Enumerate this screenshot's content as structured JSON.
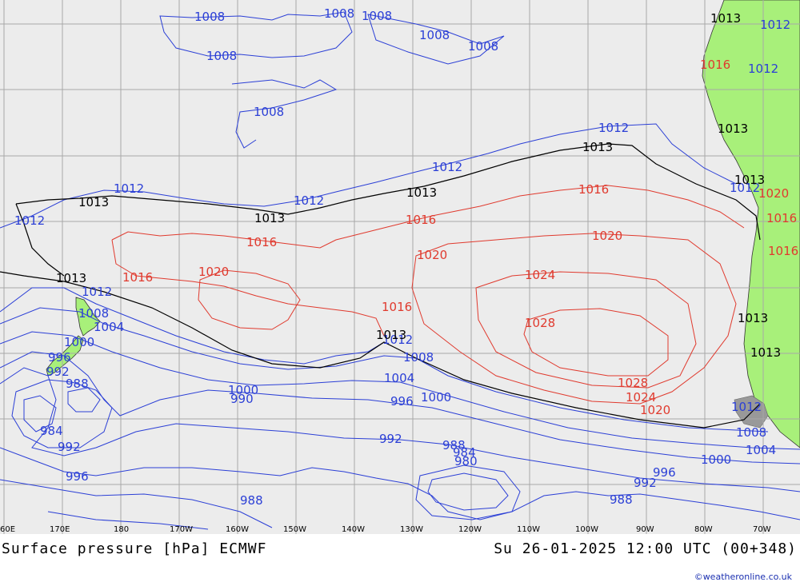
{
  "title": "Surface pressure [hPa] ECMWF",
  "valid_time": "Su 26-01-2025 12:00 UTC (00+348)",
  "credit": "©weatheronline.co.uk",
  "colors": {
    "ocean": "#ececec",
    "land": "#a8f07a",
    "grid": "#a8a8a8",
    "isobar_low": "#2b3fd6",
    "isobar_high": "#e03a2e",
    "isobar_1013": "#000000"
  },
  "longitude_labels": [
    "60E",
    "170E",
    "180",
    "170W",
    "160W",
    "150W",
    "140W",
    "130W",
    "120W",
    "110W",
    "100W",
    "90W",
    "80W",
    "70W"
  ],
  "isobar_labels": {
    "blue": [
      "1008",
      "1008",
      "1008",
      "1008",
      "1008",
      "1008",
      "1008",
      "1012",
      "1012",
      "1012",
      "1012",
      "1012",
      "1012",
      "1012",
      "1008",
      "1004",
      "1000",
      "996",
      "992",
      "988",
      "984",
      "992",
      "996",
      "988",
      "1000",
      "990",
      "1012",
      "1008",
      "1004",
      "996",
      "1000",
      "992",
      "988",
      "984",
      "980",
      "996",
      "992",
      "988",
      "1000",
      "1004",
      "1008",
      "1012",
      "1012",
      "1012"
    ],
    "red": [
      "1016",
      "1016",
      "1016",
      "1016",
      "1020",
      "1020",
      "1020",
      "1016",
      "1024",
      "1028",
      "1028",
      "1024",
      "1020",
      "1016",
      "1020",
      "1016",
      "1016"
    ],
    "black": [
      "1013",
      "1013",
      "1013",
      "1013",
      "1013",
      "1013",
      "1013",
      "1013",
      "1013",
      "1013",
      "1013"
    ]
  },
  "high_center": "1028",
  "low_centers": [
    "984",
    "980"
  ]
}
